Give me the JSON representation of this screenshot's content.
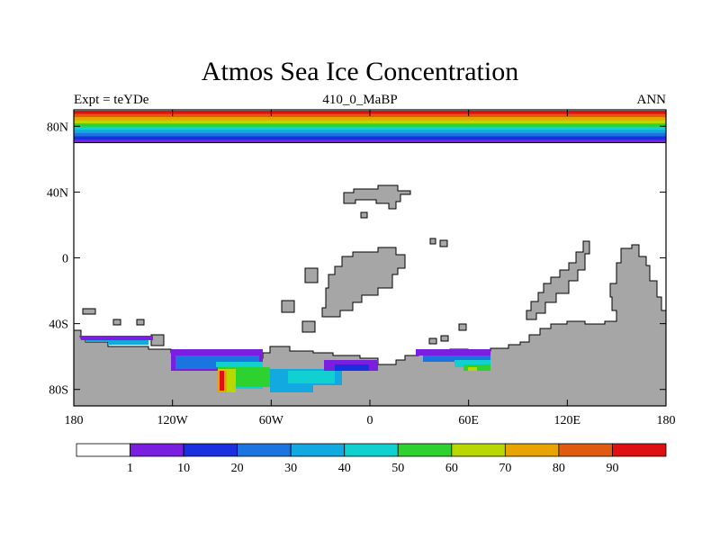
{
  "map": {
    "title": "Atmos Sea Ice Concentration",
    "subtitle_left": "Expt = teYDe",
    "subtitle_center": "410_0_MaBP",
    "subtitle_right": "ANN",
    "lon_range": [
      -180,
      180
    ],
    "lat_range": [
      -90,
      90
    ],
    "lon_ticks": [
      {
        "value": -180,
        "label": "180"
      },
      {
        "value": -120,
        "label": "120W"
      },
      {
        "value": -60,
        "label": "60W"
      },
      {
        "value": 0,
        "label": "0"
      },
      {
        "value": 60,
        "label": "60E"
      },
      {
        "value": 120,
        "label": "120E"
      },
      {
        "value": 180,
        "label": "180"
      }
    ],
    "lat_ticks": [
      {
        "value": 80,
        "label": "80N"
      },
      {
        "value": 40,
        "label": "40N"
      },
      {
        "value": 0,
        "label": "0"
      },
      {
        "value": -40,
        "label": "40S"
      },
      {
        "value": -80,
        "label": "80S"
      }
    ],
    "colors": {
      "land": "#a6a6a6",
      "ocean": "#ffffff",
      "frame": "#000000"
    }
  },
  "legend": {
    "levels": [
      "1",
      "10",
      "20",
      "30",
      "40",
      "50",
      "60",
      "70",
      "80",
      "90"
    ],
    "colors": [
      "#ffffff",
      "#7a1fe0",
      "#1a2fe0",
      "#1c74e0",
      "#12a8e0",
      "#10d0d0",
      "#2ed22e",
      "#b8d800",
      "#e8a400",
      "#e05a10",
      "#e01010"
    ]
  }
}
